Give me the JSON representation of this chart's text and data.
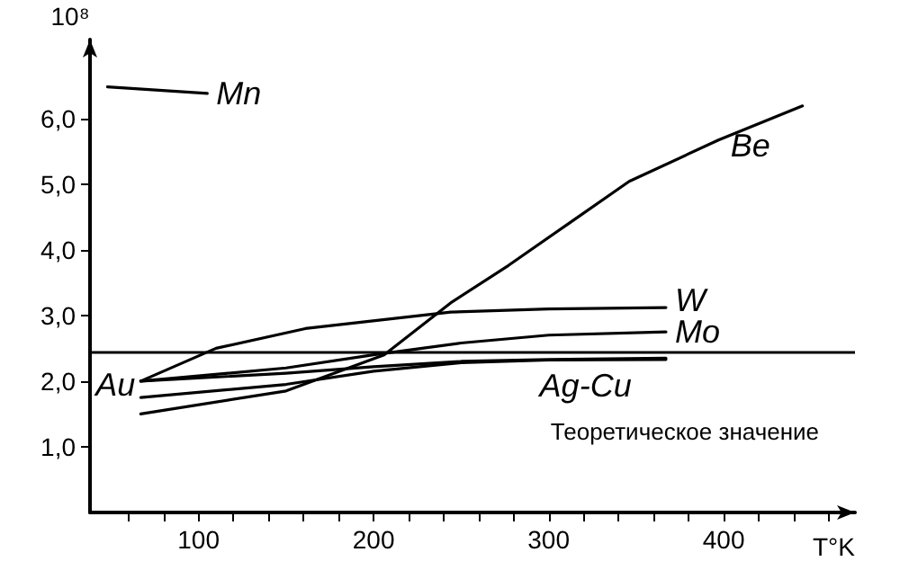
{
  "chart_data": {
    "type": "line",
    "xlabel": "T°K",
    "ylabel": "10⁸",
    "xlim": [
      38,
      475
    ],
    "ylim": [
      0,
      7.2
    ],
    "xticks": [
      {
        "value": 60,
        "label": null
      },
      {
        "value": 80,
        "label": null
      },
      100,
      {
        "value": 120,
        "label": null
      },
      {
        "value": 140,
        "label": null
      },
      {
        "value": 160,
        "label": null
      },
      {
        "value": 180,
        "label": null
      },
      200,
      {
        "value": 220,
        "label": null
      },
      {
        "value": 240,
        "label": null
      },
      {
        "value": 260,
        "label": null
      },
      {
        "value": 280,
        "label": null
      },
      300,
      {
        "value": 320,
        "label": null
      },
      {
        "value": 340,
        "label": null
      },
      {
        "value": 360,
        "label": null
      },
      {
        "value": 380,
        "label": null
      },
      400,
      {
        "value": 420,
        "label": null
      },
      {
        "value": 440,
        "label": null
      },
      {
        "value": 460,
        "label": null
      }
    ],
    "yticks": [
      {
        "value": 1,
        "label": "1,0"
      },
      {
        "value": 2,
        "label": "2,0"
      },
      {
        "value": 3,
        "label": "3,0"
      },
      {
        "value": 4,
        "label": "4,0"
      },
      {
        "value": 5,
        "label": "5,0"
      },
      {
        "value": 6,
        "label": "6,0"
      }
    ],
    "grid": false,
    "legend": false,
    "marker": "none",
    "line_style": "solid",
    "series": [
      {
        "name": "Mn",
        "color": "#000000",
        "x": [
          48,
          105
        ],
        "values": [
          6.48,
          6.38
        ]
      },
      {
        "name": "Be",
        "color": "#000000",
        "x": [
          67,
          150,
          206,
          244,
          277,
          312,
          346,
          397,
          445
        ],
        "values": [
          1.5,
          1.85,
          2.4,
          3.19,
          3.76,
          4.41,
          5.04,
          5.67,
          6.19
        ]
      },
      {
        "name": "W",
        "color": "#000000",
        "x": [
          67,
          110,
          161,
          244,
          300,
          367
        ],
        "values": [
          2.0,
          2.5,
          2.8,
          3.05,
          3.1,
          3.12
        ]
      },
      {
        "name": "Mo",
        "color": "#000000",
        "x": [
          67,
          150,
          200,
          250,
          300,
          367
        ],
        "values": [
          2.0,
          2.2,
          2.4,
          2.58,
          2.7,
          2.75
        ]
      },
      {
        "name": "Ag-Cu",
        "color": "#000000",
        "x": [
          67,
          150,
          200,
          250,
          300,
          367
        ],
        "values": [
          1.75,
          1.95,
          2.15,
          2.28,
          2.32,
          2.33
        ]
      },
      {
        "name": "Au",
        "color": "#000000",
        "x": [
          67,
          150,
          200,
          250,
          300,
          367
        ],
        "values": [
          2.0,
          2.12,
          2.22,
          2.3,
          2.33,
          2.35
        ]
      }
    ],
    "ref_lines": [
      {
        "axis": "y",
        "value": 2.45,
        "label": "Теоретическое значение",
        "color": "#000000"
      }
    ]
  }
}
